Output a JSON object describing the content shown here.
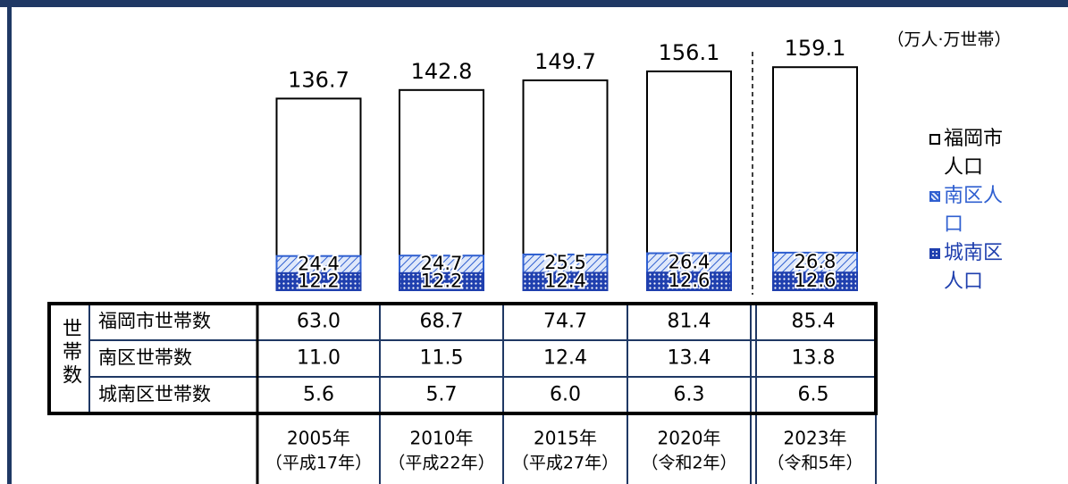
{
  "chart_data": {
    "type": "bar",
    "unit_label": "（万人·万世帯）",
    "categories": [
      "2005年",
      "2010年",
      "2015年",
      "2020年",
      "2023年"
    ],
    "era_labels": [
      "（平成17年）",
      "（平成22年）",
      "（平成27年）",
      "（令和2年）",
      "（令和5年）"
    ],
    "series": [
      {
        "name": "福岡市人口",
        "color": "#000000",
        "values": [
          136.7,
          142.8,
          149.7,
          156.1,
          159.1
        ]
      },
      {
        "name": "南区人口",
        "color": "#2f5fd0",
        "values": [
          24.4,
          24.7,
          25.5,
          26.4,
          26.8
        ]
      },
      {
        "name": "城南区人口",
        "color": "#1f3fae",
        "values": [
          12.2,
          12.2,
          12.4,
          12.6,
          12.6
        ]
      }
    ],
    "table": {
      "title": "世帯数",
      "rows": [
        {
          "name": "福岡市世帯数",
          "values": [
            63,
            68.7,
            74.7,
            81.4,
            85.4
          ],
          "value_labels": [
            "63.0",
            "68.7",
            "74.7",
            "81.4",
            "85.4"
          ]
        },
        {
          "name": "南区世帯数",
          "values": [
            11,
            11.5,
            12.4,
            13.4,
            13.8
          ],
          "value_labels": [
            "11.0",
            "11.5",
            "12.4",
            "13.4",
            "13.8"
          ]
        },
        {
          "name": "城南区世帯数",
          "values": [
            5.6,
            5.7,
            6,
            6.3,
            6.5
          ],
          "value_labels": [
            "5.6",
            "5.7",
            "6.0",
            "6.3",
            "6.5"
          ]
        }
      ]
    }
  }
}
